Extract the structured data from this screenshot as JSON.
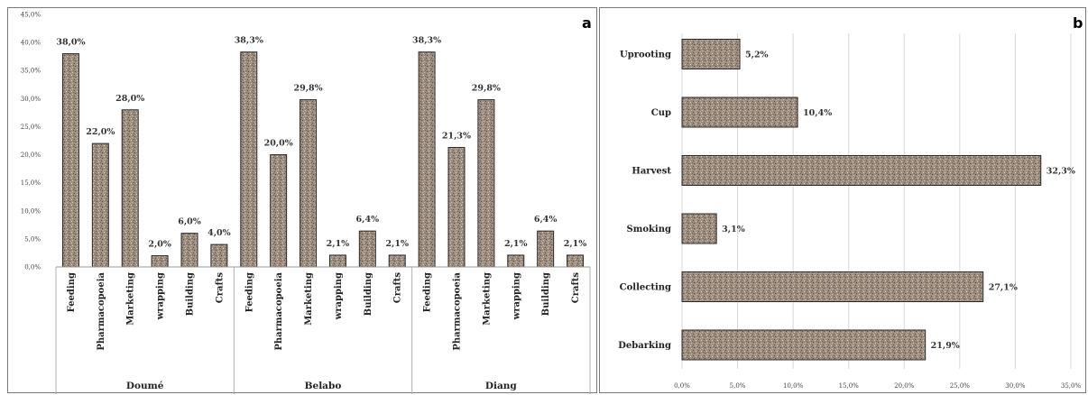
{
  "chart_data": [
    {
      "panel": "a",
      "type": "bar",
      "ylim": [
        0,
        45
      ],
      "yticks": [
        "0,0%",
        "5,0%",
        "10,0%",
        "15,0%",
        "20,0%",
        "25,0%",
        "30,0%",
        "35,0%",
        "40,0%",
        "45,0%"
      ],
      "categories": [
        "Feeding",
        "Pharmacopoeia",
        "Marketing",
        "wrapping",
        "Building",
        "Crafts"
      ],
      "groups": [
        {
          "name": "Doumé",
          "values": [
            38.0,
            22.0,
            28.0,
            2.0,
            6.0,
            4.0
          ],
          "labels": [
            "38,0%",
            "22,0%",
            "28,0%",
            "2,0%",
            "6,0%",
            "4,0%"
          ]
        },
        {
          "name": "Belabo",
          "values": [
            38.3,
            20.0,
            29.8,
            2.1,
            6.4,
            2.1
          ],
          "labels": [
            "38,3%",
            "20,0%",
            "29,8%",
            "2,1%",
            "6,4%",
            "2,1%"
          ]
        },
        {
          "name": "Diang",
          "values": [
            38.3,
            21.3,
            29.8,
            2.1,
            6.4,
            2.1
          ],
          "labels": [
            "38,3%",
            "21,3%",
            "29,8%",
            "2,1%",
            "6,4%",
            "2,1%"
          ]
        }
      ],
      "grid": false
    },
    {
      "panel": "b",
      "type": "bar",
      "orientation": "horizontal",
      "xlim": [
        0,
        35
      ],
      "xticks": [
        "0,0%",
        "5,0%",
        "10,0%",
        "15,0%",
        "20,0%",
        "25,0%",
        "30,0%",
        "35,0%"
      ],
      "categories": [
        "Uprooting",
        "Cup",
        "Harvest",
        "Smoking",
        "Collecting",
        "Debarking"
      ],
      "values": [
        5.2,
        10.4,
        32.3,
        3.1,
        27.1,
        21.9
      ],
      "labels": [
        "5,2%",
        "10,4%",
        "32,3%",
        "3,1%",
        "27,1%",
        "21,9%"
      ],
      "grid": "vertical"
    }
  ],
  "style": {
    "bar_fill": "#9a8a7c",
    "bar_stroke": "#2a2a2a",
    "grid": "#d8d8d8"
  }
}
